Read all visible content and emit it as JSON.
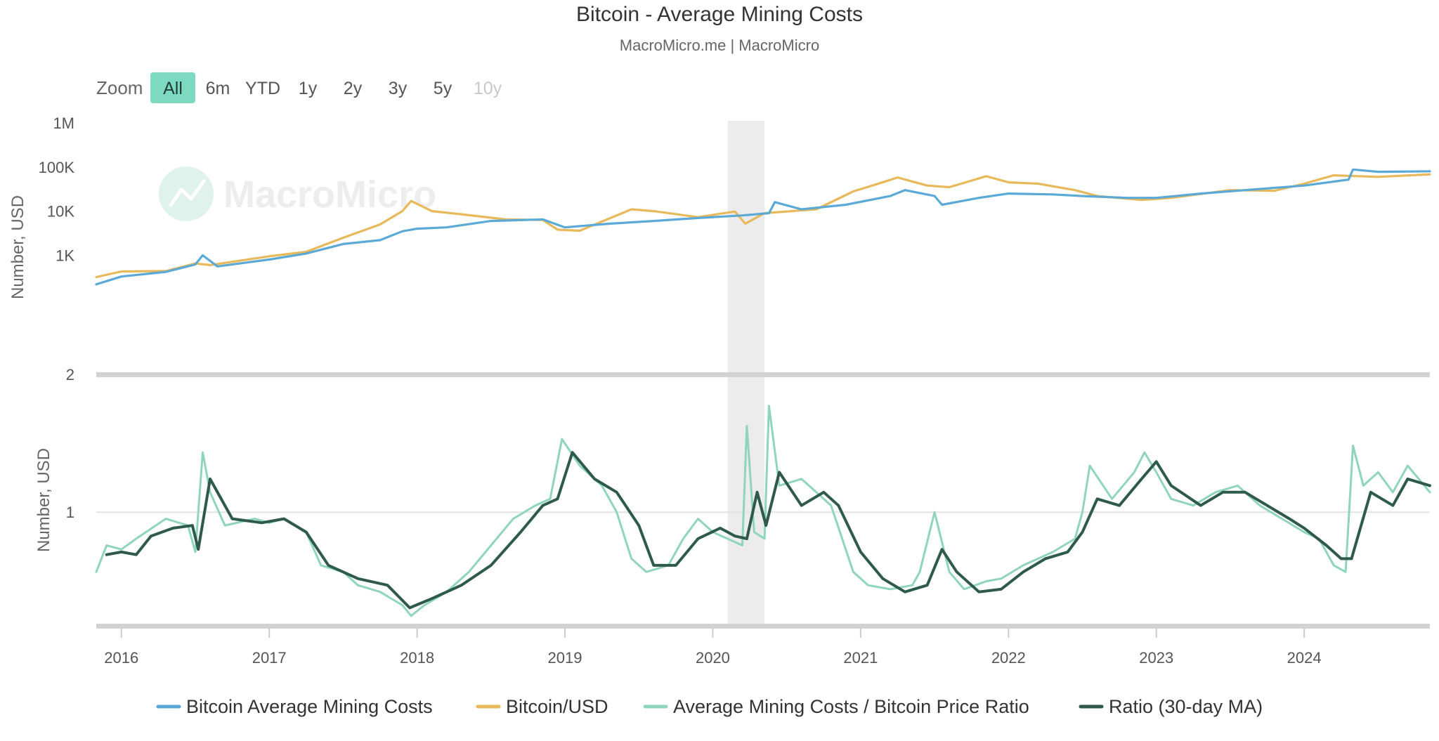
{
  "colors": {
    "mining_cost": "#5aa9d6",
    "btc_usd": "#e8b95a",
    "ratio": "#8fd5bd",
    "ratio_ma": "#2e5a4c",
    "zoom_active_bg": "#7dd9bf",
    "recession_band": "#ececec",
    "navigator": "#d2d2d2"
  },
  "chart_data": {
    "type": "line",
    "title": "Bitcoin - Average Mining Costs",
    "subtitle": "MacroMicro.me | MacroMicro",
    "watermark": "MacroMicro",
    "zoom": {
      "label": "Zoom",
      "options": [
        "All",
        "6m",
        "YTD",
        "1y",
        "2y",
        "3y",
        "5y",
        "10y"
      ],
      "selected": "All",
      "disabled": [
        "10y"
      ]
    },
    "x_axis": {
      "ticks": [
        "2016",
        "2017",
        "2018",
        "2019",
        "2020",
        "2021",
        "2022",
        "2023",
        "2024"
      ],
      "range": [
        2015.83,
        2024.85
      ]
    },
    "top_panel": {
      "ylabel": "Number, USD",
      "scale": "log",
      "ylim": [
        2,
        1000000
      ],
      "ytick_values": [
        1000000,
        100000,
        10000,
        1000,
        2
      ],
      "ytick_labels": [
        "1M",
        "100K",
        "10K",
        "1K",
        "2"
      ]
    },
    "bottom_panel": {
      "ylabel": "Number, USD",
      "ylim": [
        0.15,
        2.0
      ],
      "ytick_values": [
        1
      ],
      "ytick_labels": [
        "1"
      ]
    },
    "shaded_band": {
      "x": [
        2020.1,
        2020.35
      ]
    },
    "series": [
      {
        "name": "Bitcoin Average Mining Costs",
        "panel": "top",
        "x": [
          2015.83,
          2016.0,
          2016.3,
          2016.5,
          2016.55,
          2016.65,
          2017.0,
          2017.25,
          2017.5,
          2017.75,
          2017.9,
          2018.0,
          2018.2,
          2018.5,
          2018.85,
          2019.0,
          2019.3,
          2019.6,
          2019.9,
          2020.2,
          2020.38,
          2020.42,
          2020.6,
          2020.9,
          2021.2,
          2021.3,
          2021.5,
          2021.55,
          2021.8,
          2022.0,
          2022.3,
          2022.5,
          2022.8,
          2023.0,
          2023.3,
          2023.6,
          2024.0,
          2024.3,
          2024.33,
          2024.5,
          2024.85
        ],
        "y": [
          220,
          330,
          420,
          620,
          1000,
          560,
          800,
          1100,
          1800,
          2200,
          3500,
          4000,
          4300,
          6000,
          6500,
          4300,
          5200,
          6000,
          7000,
          8000,
          9000,
          16000,
          11000,
          14000,
          22000,
          30000,
          22000,
          14000,
          20000,
          25000,
          24000,
          22000,
          20000,
          20000,
          25000,
          30000,
          38000,
          52000,
          88000,
          78000,
          80000
        ]
      },
      {
        "name": "Bitcoin/USD",
        "panel": "top",
        "x": [
          2015.83,
          2016.0,
          2016.3,
          2016.5,
          2016.6,
          2017.0,
          2017.25,
          2017.5,
          2017.75,
          2017.9,
          2017.96,
          2018.1,
          2018.3,
          2018.6,
          2018.85,
          2018.95,
          2019.1,
          2019.45,
          2019.6,
          2019.9,
          2020.15,
          2020.22,
          2020.35,
          2020.7,
          2020.95,
          2021.1,
          2021.25,
          2021.45,
          2021.6,
          2021.85,
          2022.0,
          2022.2,
          2022.45,
          2022.6,
          2022.9,
          2023.1,
          2023.5,
          2023.8,
          2024.0,
          2024.2,
          2024.5,
          2024.85
        ],
        "y": [
          320,
          430,
          440,
          650,
          600,
          950,
          1200,
          2500,
          5000,
          10000,
          17000,
          10000,
          8500,
          6500,
          6300,
          3800,
          3600,
          11000,
          10000,
          7300,
          9800,
          5200,
          9000,
          11000,
          28000,
          40000,
          58000,
          38000,
          35000,
          62000,
          45000,
          42000,
          30000,
          22000,
          18000,
          20000,
          30000,
          29000,
          42000,
          65000,
          60000,
          68000
        ]
      },
      {
        "name": "Average Mining Costs / Bitcoin Price Ratio",
        "panel": "bottom",
        "x": [
          2015.83,
          2015.9,
          2016.0,
          2016.1,
          2016.3,
          2016.45,
          2016.5,
          2016.55,
          2016.6,
          2016.7,
          2016.9,
          2017.0,
          2017.1,
          2017.25,
          2017.35,
          2017.5,
          2017.6,
          2017.75,
          2017.9,
          2017.96,
          2018.05,
          2018.2,
          2018.35,
          2018.5,
          2018.65,
          2018.8,
          2018.9,
          2018.98,
          2019.1,
          2019.25,
          2019.35,
          2019.45,
          2019.55,
          2019.7,
          2019.8,
          2019.9,
          2020.0,
          2020.1,
          2020.2,
          2020.23,
          2020.28,
          2020.35,
          2020.38,
          2020.45,
          2020.6,
          2020.7,
          2020.8,
          2020.95,
          2021.05,
          2021.2,
          2021.35,
          2021.4,
          2021.5,
          2021.6,
          2021.7,
          2021.85,
          2021.95,
          2022.1,
          2022.3,
          2022.45,
          2022.5,
          2022.55,
          2022.7,
          2022.85,
          2022.92,
          2023.0,
          2023.1,
          2023.25,
          2023.4,
          2023.55,
          2023.7,
          2023.85,
          2024.0,
          2024.1,
          2024.2,
          2024.28,
          2024.33,
          2024.4,
          2024.5,
          2024.6,
          2024.7,
          2024.85
        ],
        "y": [
          0.55,
          0.75,
          0.72,
          0.8,
          0.95,
          0.9,
          0.7,
          1.45,
          1.15,
          0.9,
          0.95,
          0.92,
          0.95,
          0.85,
          0.6,
          0.55,
          0.45,
          0.4,
          0.3,
          0.22,
          0.3,
          0.4,
          0.55,
          0.75,
          0.95,
          1.05,
          1.1,
          1.55,
          1.35,
          1.2,
          1.0,
          0.65,
          0.55,
          0.6,
          0.8,
          0.95,
          0.85,
          0.8,
          0.75,
          1.65,
          0.85,
          0.8,
          1.8,
          1.2,
          1.25,
          1.15,
          1.05,
          0.55,
          0.45,
          0.42,
          0.45,
          0.55,
          1.0,
          0.55,
          0.42,
          0.48,
          0.5,
          0.6,
          0.7,
          0.8,
          1.0,
          1.35,
          1.1,
          1.3,
          1.45,
          1.3,
          1.1,
          1.05,
          1.15,
          1.2,
          1.05,
          0.95,
          0.85,
          0.8,
          0.6,
          0.55,
          1.5,
          1.2,
          1.3,
          1.15,
          1.35,
          1.15
        ]
      },
      {
        "name": "Ratio (30-day MA)",
        "panel": "bottom",
        "x": [
          2015.9,
          2016.0,
          2016.1,
          2016.2,
          2016.35,
          2016.48,
          2016.52,
          2016.6,
          2016.75,
          2016.95,
          2017.1,
          2017.25,
          2017.4,
          2017.6,
          2017.8,
          2017.95,
          2018.1,
          2018.3,
          2018.5,
          2018.7,
          2018.85,
          2018.95,
          2019.05,
          2019.2,
          2019.35,
          2019.5,
          2019.6,
          2019.75,
          2019.9,
          2020.05,
          2020.15,
          2020.23,
          2020.3,
          2020.36,
          2020.45,
          2020.6,
          2020.75,
          2020.85,
          2021.0,
          2021.15,
          2021.3,
          2021.45,
          2021.55,
          2021.65,
          2021.8,
          2021.95,
          2022.1,
          2022.25,
          2022.4,
          2022.5,
          2022.6,
          2022.75,
          2022.9,
          2023.0,
          2023.1,
          2023.3,
          2023.45,
          2023.6,
          2023.75,
          2023.9,
          2024.0,
          2024.15,
          2024.25,
          2024.32,
          2024.45,
          2024.6,
          2024.7,
          2024.85
        ],
        "y": [
          0.68,
          0.7,
          0.68,
          0.82,
          0.88,
          0.9,
          0.72,
          1.25,
          0.95,
          0.92,
          0.95,
          0.85,
          0.6,
          0.5,
          0.45,
          0.28,
          0.35,
          0.45,
          0.6,
          0.85,
          1.05,
          1.1,
          1.45,
          1.25,
          1.15,
          0.9,
          0.6,
          0.6,
          0.8,
          0.88,
          0.82,
          0.8,
          1.15,
          0.9,
          1.3,
          1.05,
          1.15,
          1.05,
          0.7,
          0.5,
          0.4,
          0.45,
          0.72,
          0.55,
          0.4,
          0.42,
          0.55,
          0.65,
          0.7,
          0.85,
          1.1,
          1.05,
          1.25,
          1.38,
          1.2,
          1.05,
          1.15,
          1.15,
          1.05,
          0.95,
          0.88,
          0.75,
          0.65,
          0.65,
          1.15,
          1.05,
          1.25,
          1.2
        ]
      }
    ],
    "legend": {
      "placement": "bottom-center",
      "items": [
        "Bitcoin Average Mining Costs",
        "Bitcoin/USD",
        "Average Mining Costs / Bitcoin Price Ratio",
        "Ratio (30-day MA)"
      ]
    }
  }
}
